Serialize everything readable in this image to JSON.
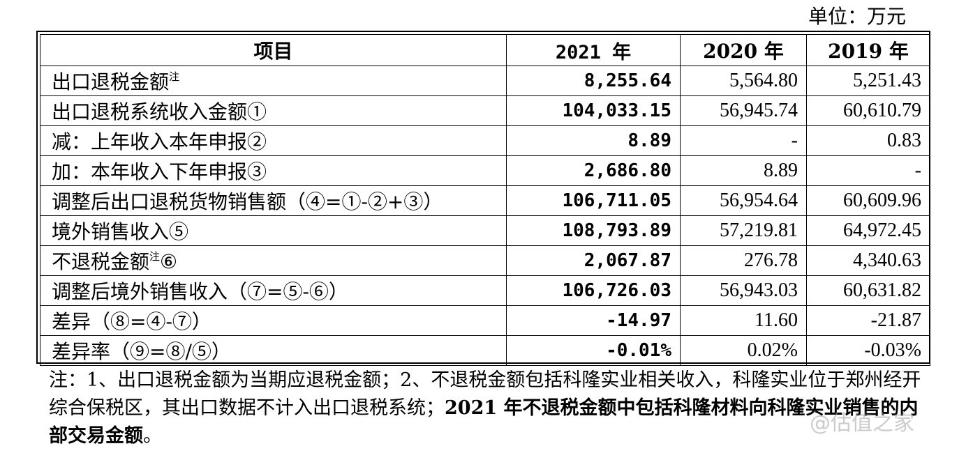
{
  "unit_label": "单位：万元",
  "table": {
    "headers": {
      "item": "项目",
      "y2021": "2021 年",
      "y2020": "2020 年",
      "y2019": "2019 年"
    },
    "rows": [
      {
        "label": "出口退税金额",
        "sup": "注",
        "suffix": "",
        "v2021": "8,255.64",
        "v2020": "5,564.80",
        "v2019": "5,251.43"
      },
      {
        "label": "出口退税系统收入金额①",
        "sup": "",
        "suffix": "",
        "v2021": "104,033.15",
        "v2020": "56,945.74",
        "v2019": "60,610.79"
      },
      {
        "label": "减：上年收入本年申报②",
        "sup": "",
        "suffix": "",
        "v2021": "8.89",
        "v2020": "-",
        "v2019": "0.83"
      },
      {
        "label": "加：本年收入下年申报③",
        "sup": "",
        "suffix": "",
        "v2021": "2,686.80",
        "v2020": "8.89",
        "v2019": "-"
      },
      {
        "label": "调整后出口退税货物销售额（④=①-②+③）",
        "sup": "",
        "suffix": "",
        "v2021": "106,711.05",
        "v2020": "56,954.64",
        "v2019": "60,609.96"
      },
      {
        "label": "境外销售收入⑤",
        "sup": "",
        "suffix": "",
        "v2021": "108,793.89",
        "v2020": "57,219.81",
        "v2019": "64,972.45"
      },
      {
        "label": "不退税金额",
        "sup": "注",
        "suffix": "⑥",
        "v2021": "2,067.87",
        "v2020": "276.78",
        "v2019": "4,340.63"
      },
      {
        "label": "调整后境外销售收入（⑦=⑤-⑥）",
        "sup": "",
        "suffix": "",
        "v2021": "106,726.03",
        "v2020": "56,943.03",
        "v2019": "60,631.82"
      },
      {
        "label": "差异（⑧=④-⑦）",
        "sup": "",
        "suffix": "",
        "v2021": "-14.97",
        "v2020": "11.60",
        "v2019": "-21.87"
      },
      {
        "label": "差异率（⑨=⑧/⑤）",
        "sup": "",
        "suffix": "",
        "v2021": "-0.01%",
        "v2020": "0.02%",
        "v2019": "-0.03%"
      }
    ]
  },
  "note": {
    "normal": "注：1、出口退税金额为当期应退税金额；2、不退税金额包括科隆实业相关收入，科隆实业位于郑州经开综合保税区，其出口数据不计入出口退税系统；",
    "bold": "2021 年不退税金额中包括科隆材料向科隆实业销售的内部交易金额",
    "end": "。"
  },
  "watermark": "@估值之家"
}
